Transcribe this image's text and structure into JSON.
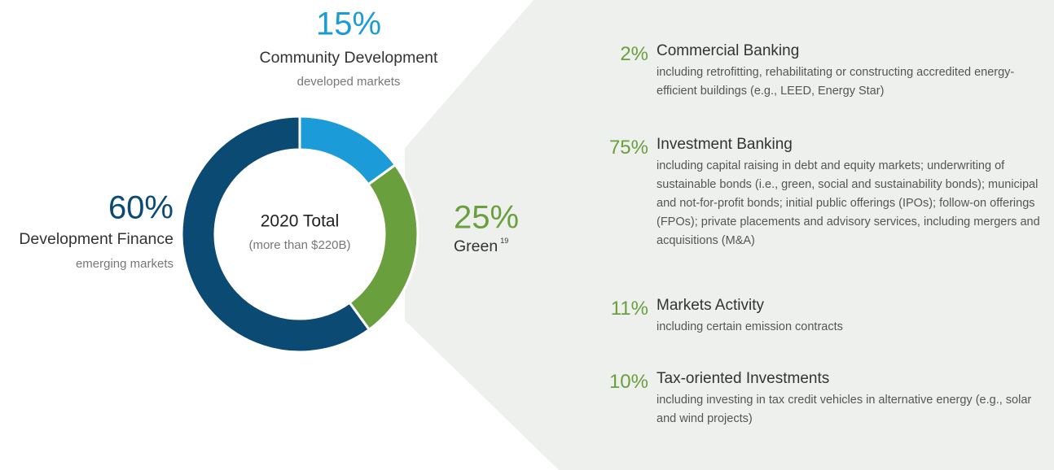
{
  "chart_data": {
    "type": "pie",
    "donut": true,
    "center_title": "2020 Total",
    "center_subtitle": "(more than $220B)",
    "categories": [
      "Community Development",
      "Green",
      "Development Finance"
    ],
    "sublabels": [
      "developed markets",
      null,
      "emerging markets"
    ],
    "footnotes": [
      null,
      "19",
      null
    ],
    "values": [
      15,
      25,
      60
    ],
    "value_labels": [
      "15%",
      "25%",
      "60%"
    ],
    "colors": [
      "#1b9bd7",
      "#6a9f3d",
      "#0b4a73"
    ]
  },
  "breakdown": {
    "items": [
      {
        "value": "2%",
        "name": "Commercial Banking",
        "description": "including retrofitting, rehabilitating or constructing accredited energy-efficient buildings (e.g., LEED, Energy Star)"
      },
      {
        "value": "75%",
        "name": "Investment Banking",
        "description": "including capital raising in debt and equity markets; underwriting of sustainable bonds (i.e., green, social and sustainability bonds); municipal and not-for-profit bonds; initial public offerings (IPOs); follow-on offerings (FPOs); private placements and advisory services, including mergers and acquisitions (M&A)"
      },
      {
        "value": "11%",
        "name": "Markets Activity",
        "description": "including certain emission contracts"
      },
      {
        "value": "10%",
        "name": "Tax-oriented Investments",
        "description": "including investing in tax credit vehicles in alternative energy (e.g., solar and wind projects)"
      }
    ]
  }
}
